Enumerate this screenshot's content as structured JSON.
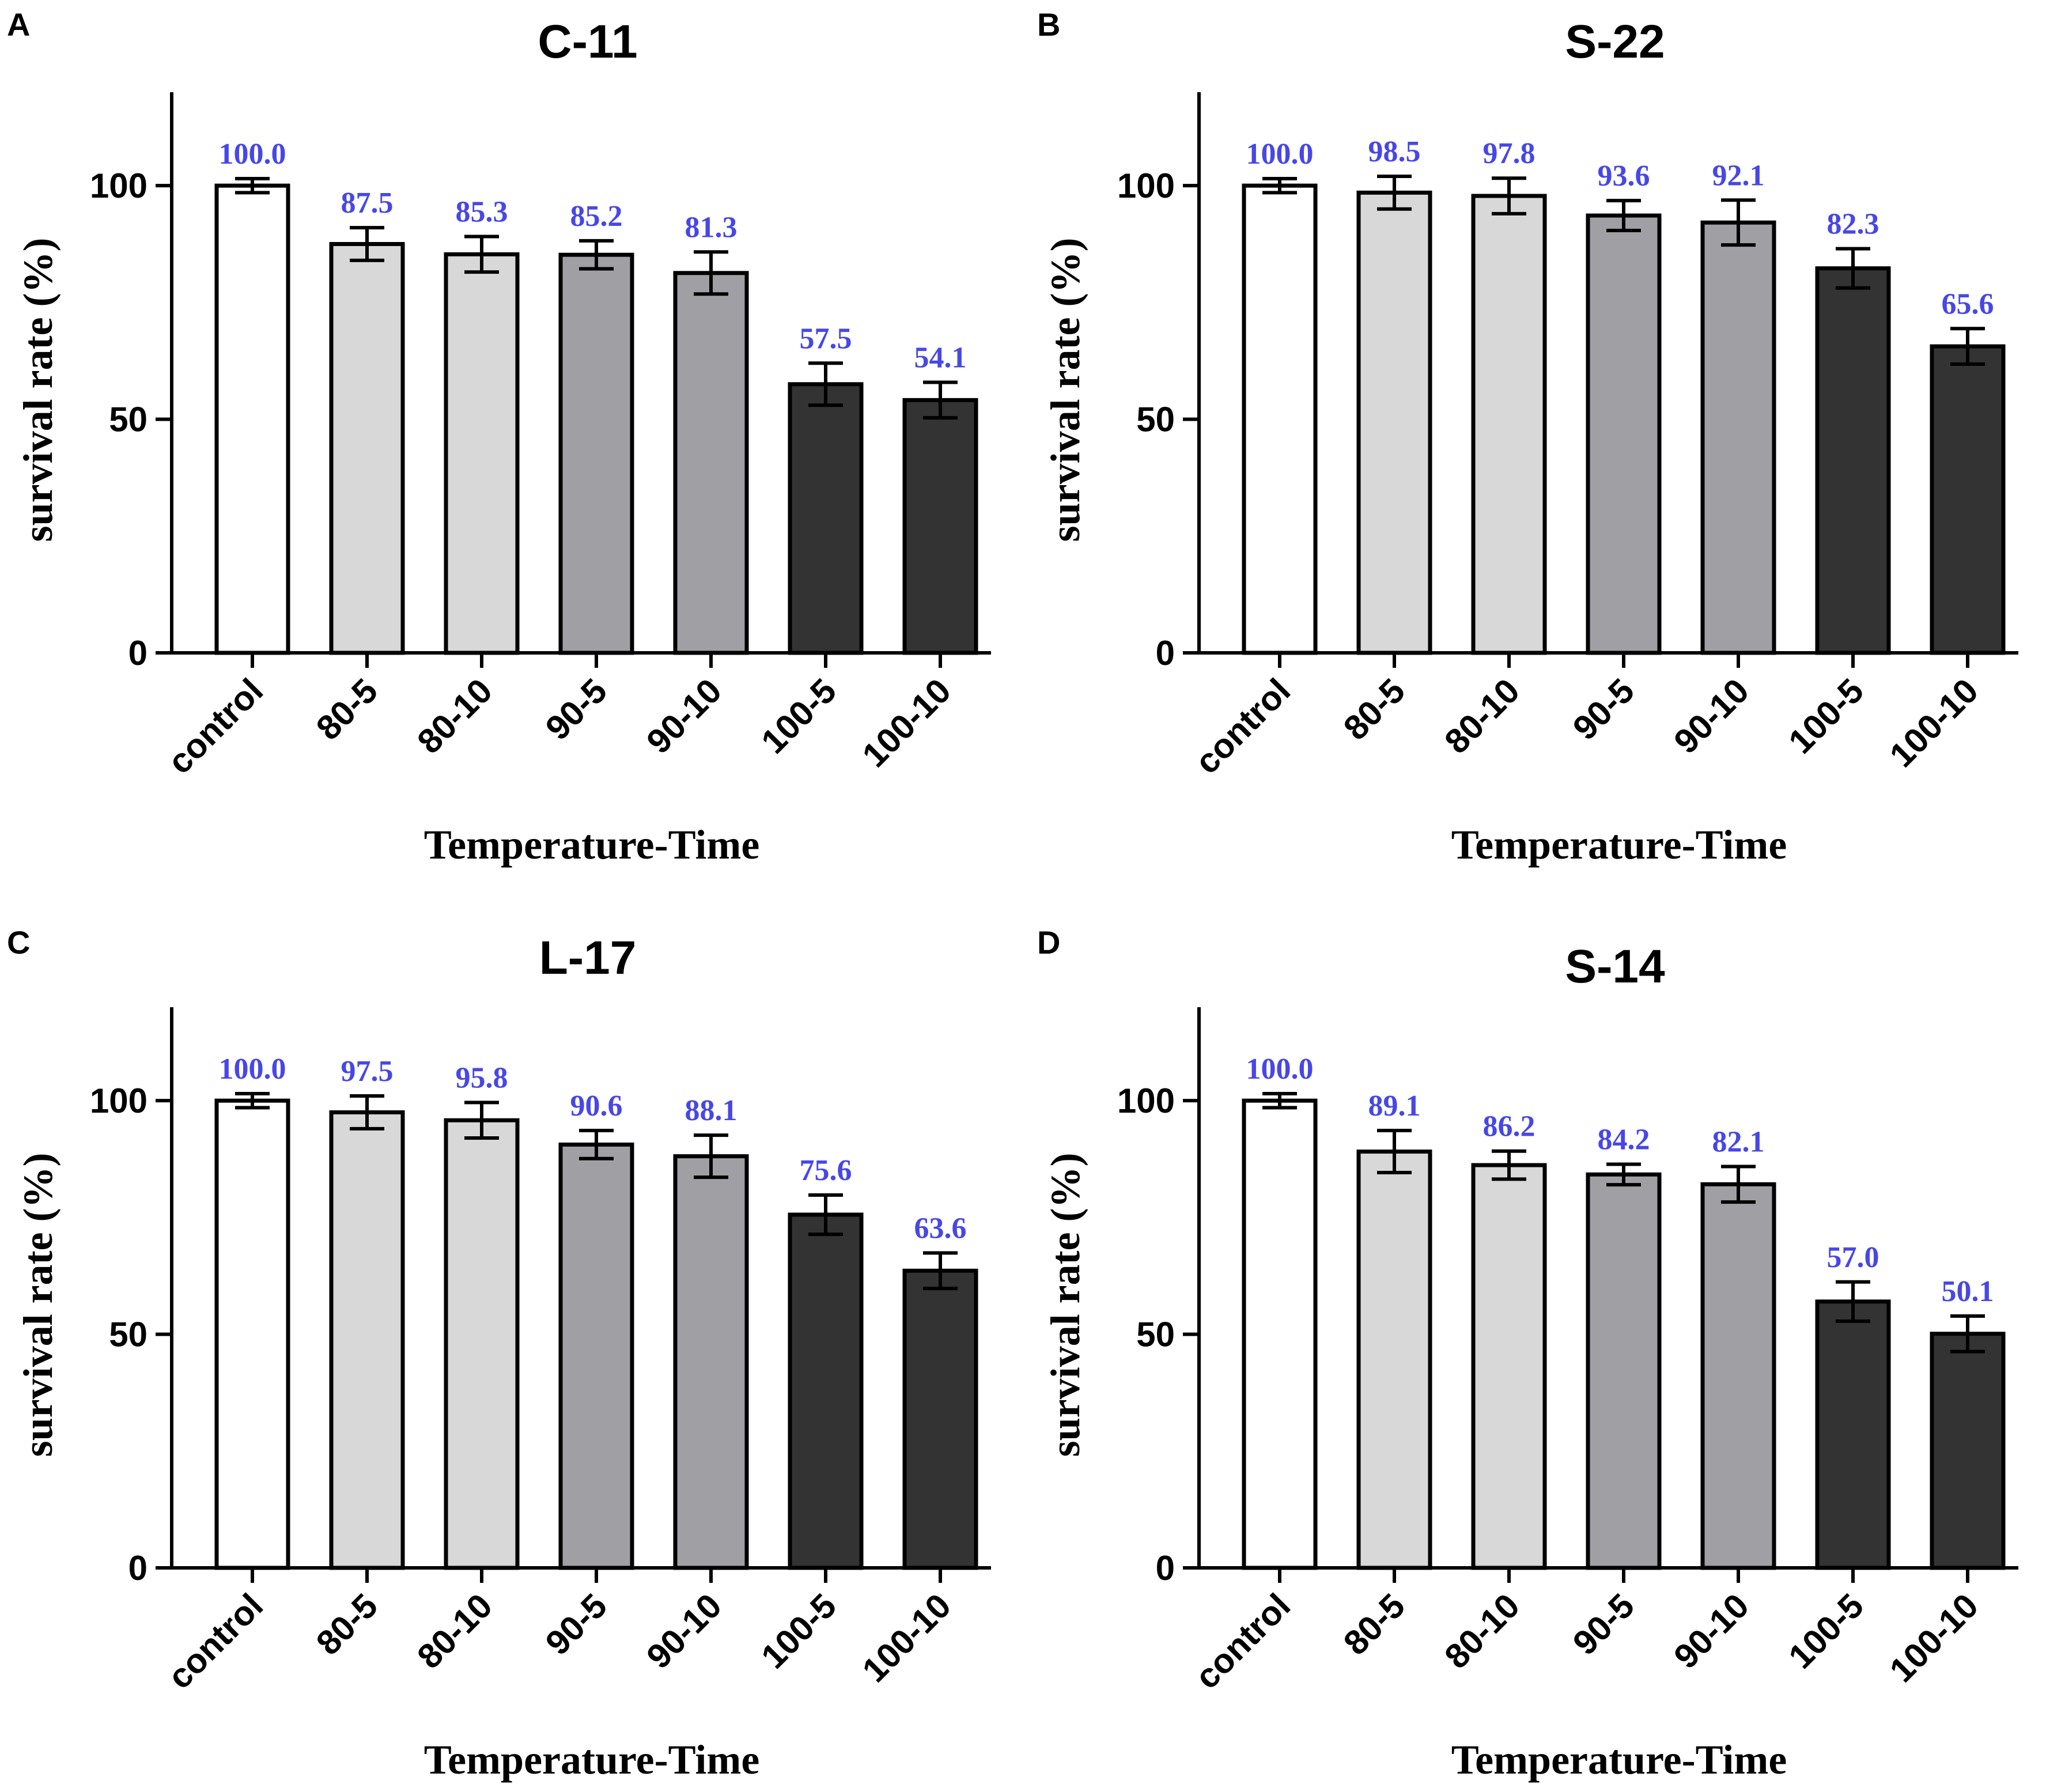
{
  "colors": {
    "value_label": "#4747e8",
    "shades": [
      "#ffffff",
      "#d8d8d8",
      "#d8d8d8",
      "#a0a0a4",
      "#a0a0a4",
      "#333333",
      "#333333"
    ]
  },
  "chart_data": [
    {
      "panel": "A",
      "type": "bar",
      "title": "C-11",
      "xlabel": "Temperature-Time",
      "ylabel": "survival rate (%)",
      "ylim": [
        0,
        120
      ],
      "yticks": [
        0,
        50,
        100
      ],
      "categories": [
        "control",
        "80-5",
        "80-10",
        "90-5",
        "90-10",
        "100-5",
        "100-10"
      ],
      "values": [
        100.0,
        87.5,
        85.3,
        85.2,
        81.3,
        57.5,
        54.1
      ],
      "errors": [
        1.5,
        3.5,
        3.8,
        3.0,
        4.5,
        4.5,
        3.8
      ],
      "value_labels": [
        "100.0",
        "87.5",
        "85.3",
        "85.2",
        "81.3",
        "57.5",
        "54.1"
      ]
    },
    {
      "panel": "B",
      "type": "bar",
      "title": "S-22",
      "xlabel": "Temperature-Time",
      "ylabel": "survival rate (%)",
      "ylim": [
        0,
        120
      ],
      "yticks": [
        0,
        50,
        100
      ],
      "categories": [
        "control",
        "80-5",
        "80-10",
        "90-5",
        "90-10",
        "100-5",
        "100-10"
      ],
      "values": [
        100.0,
        98.5,
        97.8,
        93.6,
        92.1,
        82.3,
        65.6
      ],
      "errors": [
        1.5,
        3.5,
        3.8,
        3.2,
        4.8,
        4.2,
        3.8
      ],
      "value_labels": [
        "100.0",
        "98.5",
        "97.8",
        "93.6",
        "92.1",
        "82.3",
        "65.6"
      ]
    },
    {
      "panel": "C",
      "type": "bar",
      "title": "L-17",
      "xlabel": "Temperature-Time",
      "ylabel": "survival rate (%)",
      "ylim": [
        0,
        120
      ],
      "yticks": [
        0,
        50,
        100
      ],
      "categories": [
        "control",
        "80-5",
        "80-10",
        "90-5",
        "90-10",
        "100-5",
        "100-10"
      ],
      "values": [
        100.0,
        97.5,
        95.8,
        90.6,
        88.1,
        75.6,
        63.6
      ],
      "errors": [
        1.5,
        3.5,
        3.8,
        3.0,
        4.5,
        4.2,
        3.8
      ],
      "value_labels": [
        "100.0",
        "97.5",
        "95.8",
        "90.6",
        "88.1",
        "75.6",
        "63.6"
      ]
    },
    {
      "panel": "D",
      "type": "bar",
      "title": "S-14",
      "xlabel": "Temperature-Time",
      "ylabel": "survival rate (%)",
      "ylim": [
        0,
        120
      ],
      "yticks": [
        0,
        50,
        100
      ],
      "categories": [
        "control",
        "80-5",
        "80-10",
        "90-5",
        "90-10",
        "100-5",
        "100-10"
      ],
      "values": [
        100.0,
        89.1,
        86.2,
        84.2,
        82.1,
        57.0,
        50.1
      ],
      "errors": [
        1.5,
        4.5,
        3.0,
        2.2,
        3.8,
        4.2,
        3.8
      ],
      "value_labels": [
        "100.0",
        "89.1",
        "86.2",
        "84.2",
        "82.1",
        "57.0",
        "50.1"
      ]
    }
  ]
}
